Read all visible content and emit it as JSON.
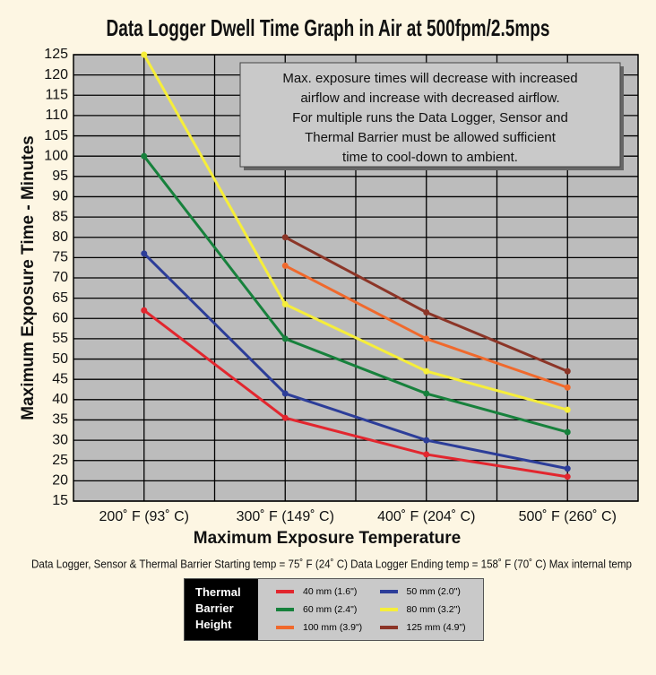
{
  "chart_data": {
    "type": "line",
    "title": "Data Logger Dwell Time Graph in Air at 500fpm/2.5mps",
    "x_label": "Maximum Exposure Temperature",
    "y_label": "Maximum Exposure Time - Minutes",
    "categories": [
      "200˚ F (93˚ C)",
      "300˚ F (149˚ C)",
      "400˚ F (204˚ C)",
      "500˚ F (260˚ C)"
    ],
    "ylim": [
      15,
      125
    ],
    "yticks": [
      15,
      20,
      25,
      30,
      35,
      40,
      45,
      50,
      55,
      60,
      65,
      70,
      75,
      80,
      85,
      90,
      95,
      100,
      105,
      110,
      115,
      120,
      125
    ],
    "grid": true,
    "annotation": [
      "Max. exposure times will decrease with increased",
      "airflow and increase with decreased airflow.",
      "For multiple runs the Data Logger, Sensor and",
      "Thermal Barrier must be allowed sufficient",
      "time to cool-down to ambient."
    ],
    "footnote": "Data Logger, Sensor & Thermal Barrier Starting temp = 75˚ F (24˚ C)   Data Logger Ending temp = 158˚ F (70˚ C) Max internal temp",
    "legend_title": "Thermal Barrier Height",
    "series": [
      {
        "name": "40 mm (1.6\")",
        "color": "#e2262e",
        "values": [
          62,
          35.5,
          26.5,
          21
        ]
      },
      {
        "name": "60 mm (2.4\")",
        "color": "#17813c",
        "values": [
          100,
          55,
          41.5,
          32
        ]
      },
      {
        "name": "100 mm (3.9\")",
        "color": "#f0692c",
        "values": [
          null,
          73,
          55,
          43
        ]
      },
      {
        "name": "50 mm (2.0\")",
        "color": "#2c3d99",
        "values": [
          76,
          41.5,
          30,
          23
        ]
      },
      {
        "name": "80 mm (3.2\")",
        "color": "#f6ee3a",
        "values": [
          125,
          63.5,
          47,
          37.5
        ]
      },
      {
        "name": "125 mm (4.9\")",
        "color": "#8c3527",
        "values": [
          null,
          80,
          61.5,
          47
        ]
      }
    ]
  }
}
